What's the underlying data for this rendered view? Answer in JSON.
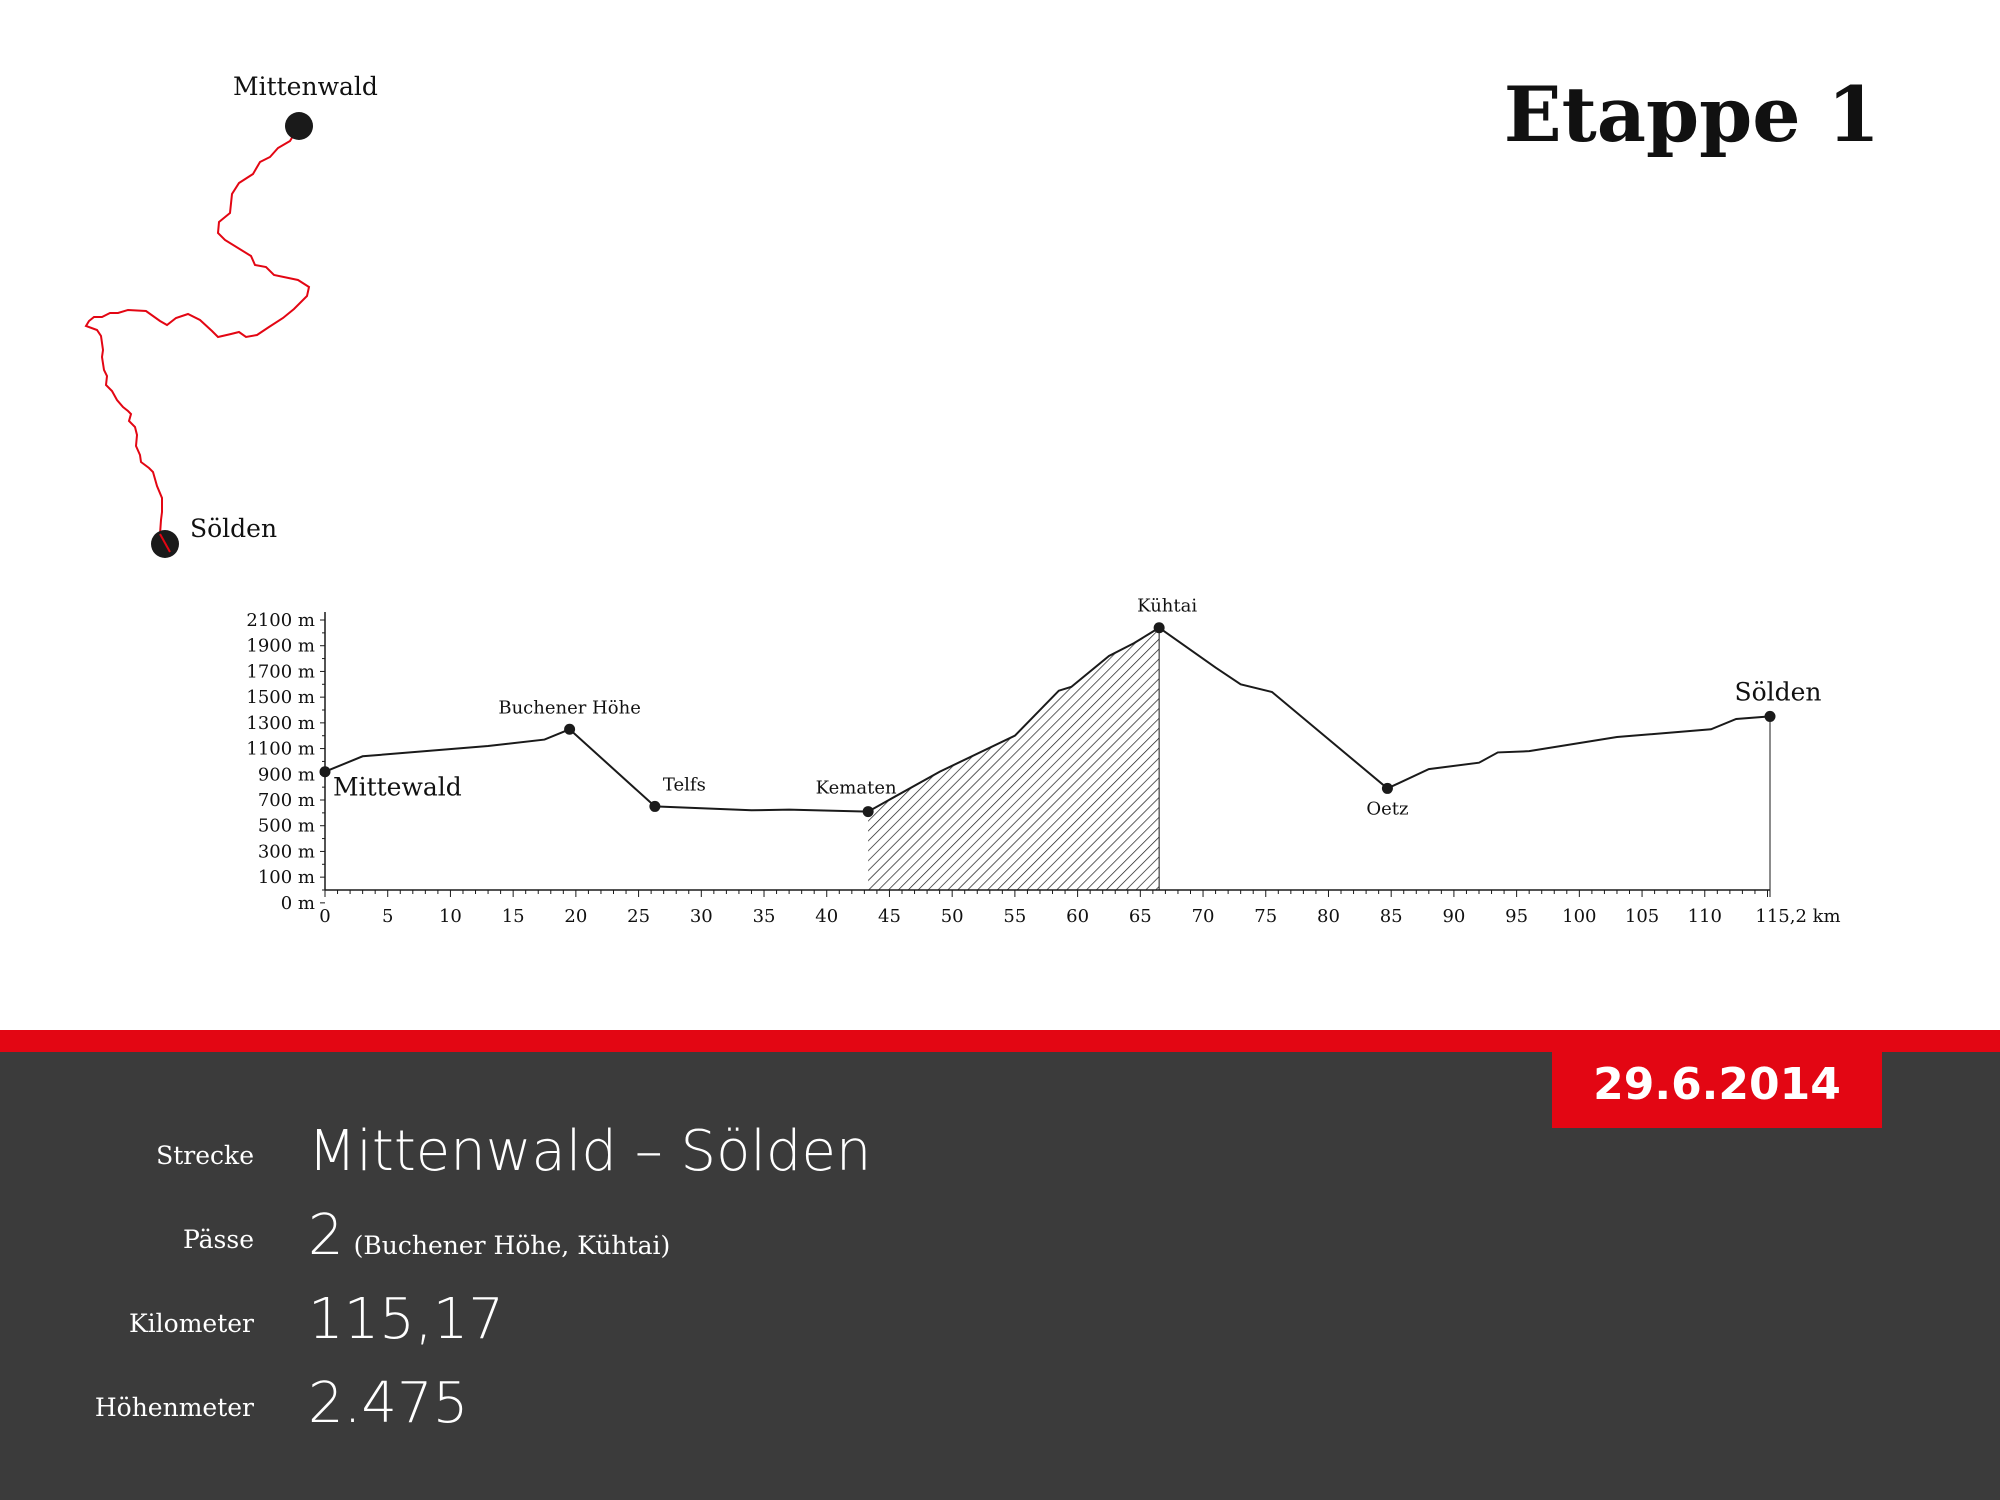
{
  "title": "Etappe 1",
  "map": {
    "start_label": "Mittenwald",
    "end_label": "Sölden",
    "route_color": "#e30613"
  },
  "chart_data": {
    "type": "area",
    "x_unit_label": "115,2 km",
    "xlim": [
      0,
      115.2
    ],
    "ylim": [
      0,
      2100
    ],
    "x_ticks": [
      "0",
      "5",
      "10",
      "15",
      "20",
      "25",
      "30",
      "35",
      "40",
      "45",
      "50",
      "55",
      "60",
      "65",
      "70",
      "75",
      "80",
      "85",
      "90",
      "95",
      "100",
      "105",
      "110",
      "115,2 km"
    ],
    "y_ticks": [
      "2100 m",
      "1900 m",
      "1700 m",
      "1500 m",
      "1300 m",
      "1100 m",
      "900 m",
      "700 m",
      "500 m",
      "300 m",
      "100 m",
      "0 m"
    ],
    "profile": [
      {
        "x": 0,
        "y": 920
      },
      {
        "x": 3,
        "y": 1040
      },
      {
        "x": 13,
        "y": 1120
      },
      {
        "x": 17.5,
        "y": 1170
      },
      {
        "x": 19.5,
        "y": 1250
      },
      {
        "x": 26.3,
        "y": 650
      },
      {
        "x": 34,
        "y": 620
      },
      {
        "x": 37,
        "y": 625
      },
      {
        "x": 43.3,
        "y": 610
      },
      {
        "x": 49,
        "y": 920
      },
      {
        "x": 55,
        "y": 1200
      },
      {
        "x": 58.5,
        "y": 1550
      },
      {
        "x": 59.5,
        "y": 1580
      },
      {
        "x": 62.5,
        "y": 1820
      },
      {
        "x": 64.5,
        "y": 1920
      },
      {
        "x": 66.5,
        "y": 2040
      },
      {
        "x": 71,
        "y": 1730
      },
      {
        "x": 73,
        "y": 1600
      },
      {
        "x": 75.5,
        "y": 1540
      },
      {
        "x": 84.7,
        "y": 790
      },
      {
        "x": 88,
        "y": 940
      },
      {
        "x": 92,
        "y": 990
      },
      {
        "x": 93.5,
        "y": 1070
      },
      {
        "x": 96,
        "y": 1080
      },
      {
        "x": 103,
        "y": 1190
      },
      {
        "x": 110.5,
        "y": 1250
      },
      {
        "x": 112.5,
        "y": 1330
      },
      {
        "x": 115.2,
        "y": 1350
      }
    ],
    "hatched_range": [
      43.3,
      66.5
    ],
    "waypoints": [
      {
        "name": "Mittewald",
        "x": 0,
        "y": 920
      },
      {
        "name": "Buchener Höhe",
        "x": 19.5,
        "y": 1250
      },
      {
        "name": "Telfs",
        "x": 26.3,
        "y": 650
      },
      {
        "name": "Kematen",
        "x": 43.3,
        "y": 610
      },
      {
        "name": "Kühtai",
        "x": 66.5,
        "y": 2040
      },
      {
        "name": "Oetz",
        "x": 84.7,
        "y": 790
      },
      {
        "name": "Sölden",
        "x": 115.2,
        "y": 1350
      }
    ]
  },
  "date": "29.6.2014",
  "info": {
    "strecke_label": "Strecke",
    "strecke_value": "Mittenwald – Sölden",
    "paesse_label": "Pässe",
    "paesse_value": "2",
    "paesse_note": "(Buchener Höhe, Kühtai)",
    "kilometer_label": "Kilometer",
    "kilometer_value": "115,17",
    "hoehenmeter_label": "Höhenmeter",
    "hoehenmeter_value": "2.475"
  },
  "colors": {
    "accent": "#e30613",
    "panel": "#3b3b3b",
    "ink": "#1a1a1a"
  }
}
